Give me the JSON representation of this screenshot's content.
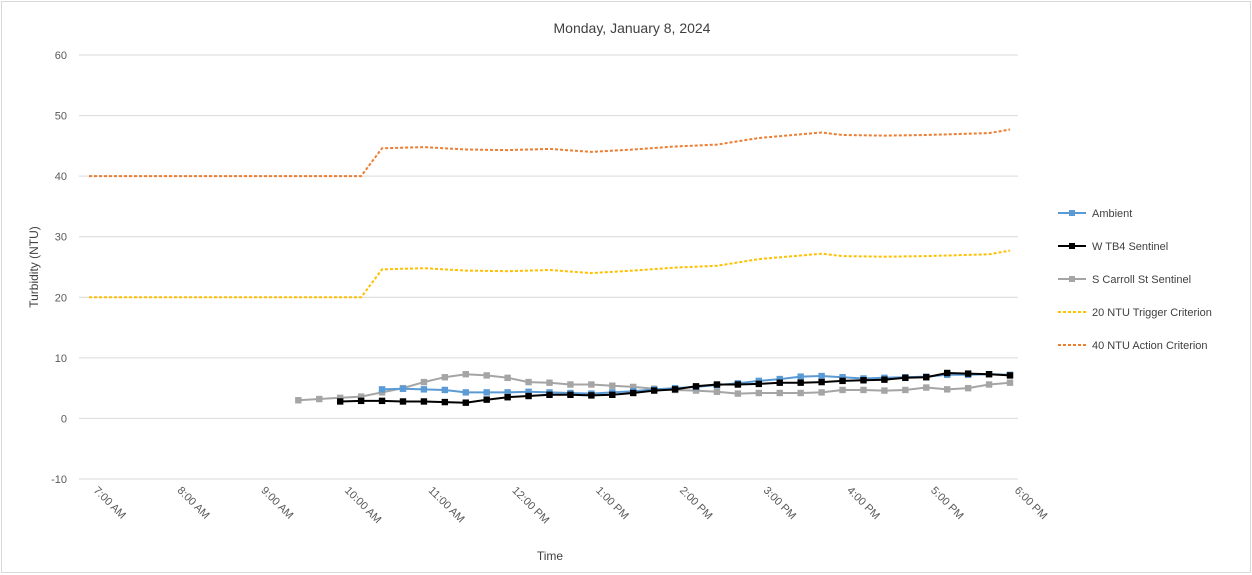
{
  "chart_data": {
    "type": "line",
    "title": "Monday, January 8, 2024",
    "xlabel": "Time",
    "ylabel": "Turbidity (NTU)",
    "ylim": [
      -10,
      60
    ],
    "yticks": [
      -10,
      0,
      10,
      20,
      30,
      40,
      50,
      60
    ],
    "x_range_hours": [
      7,
      18
    ],
    "x_tick_labels": [
      "7:00 AM",
      "8:00 AM",
      "9:00 AM",
      "10:00 AM",
      "11:00 AM",
      "12:00 PM",
      "1:00 PM",
      "2:00 PM",
      "3:00 PM",
      "4:00 PM",
      "5:00 PM",
      "6:00 PM"
    ],
    "grid": "horizontal",
    "legend_position": "right",
    "series": [
      {
        "name": "Ambient",
        "color": "#5b9bd5",
        "style": "solid",
        "marker": "square",
        "points": [
          [
            "10:30 AM",
            4.8
          ],
          [
            "10:45 AM",
            4.9
          ],
          [
            "11:00 AM",
            4.8
          ],
          [
            "11:15 AM",
            4.7
          ],
          [
            "11:30 AM",
            4.3
          ],
          [
            "11:45 AM",
            4.3
          ],
          [
            "12:00 PM",
            4.3
          ],
          [
            "12:15 PM",
            4.4
          ],
          [
            "12:30 PM",
            4.3
          ],
          [
            "12:45 PM",
            4.2
          ],
          [
            "1:00 PM",
            4.1
          ],
          [
            "1:15 PM",
            4.3
          ],
          [
            "1:30 PM",
            4.5
          ],
          [
            "1:45 PM",
            4.8
          ],
          [
            "2:00 PM",
            5.0
          ],
          [
            "2:15 PM",
            5.2
          ],
          [
            "2:30 PM",
            5.5
          ],
          [
            "2:45 PM",
            5.8
          ],
          [
            "3:00 PM",
            6.2
          ],
          [
            "3:15 PM",
            6.5
          ],
          [
            "3:30 PM",
            6.9
          ],
          [
            "3:45 PM",
            7.0
          ],
          [
            "4:00 PM",
            6.8
          ],
          [
            "4:15 PM",
            6.6
          ],
          [
            "4:30 PM",
            6.7
          ],
          [
            "4:45 PM",
            6.8
          ],
          [
            "5:00 PM",
            6.9
          ],
          [
            "5:15 PM",
            7.2
          ],
          [
            "5:30 PM",
            7.2
          ],
          [
            "5:45 PM",
            7.3
          ],
          [
            "6:00 PM",
            7.2
          ]
        ]
      },
      {
        "name": "W TB4 Sentinel",
        "color": "#000000",
        "style": "solid",
        "marker": "square",
        "points": [
          [
            "10:00 AM",
            2.8
          ],
          [
            "10:15 AM",
            2.9
          ],
          [
            "10:30 AM",
            2.9
          ],
          [
            "10:45 AM",
            2.8
          ],
          [
            "11:00 AM",
            2.8
          ],
          [
            "11:15 AM",
            2.7
          ],
          [
            "11:30 AM",
            2.6
          ],
          [
            "11:45 AM",
            3.1
          ],
          [
            "12:00 PM",
            3.5
          ],
          [
            "12:15 PM",
            3.7
          ],
          [
            "12:30 PM",
            3.9
          ],
          [
            "12:45 PM",
            3.9
          ],
          [
            "1:00 PM",
            3.8
          ],
          [
            "1:15 PM",
            3.9
          ],
          [
            "1:30 PM",
            4.2
          ],
          [
            "1:45 PM",
            4.6
          ],
          [
            "2:00 PM",
            4.8
          ],
          [
            "2:15 PM",
            5.3
          ],
          [
            "2:30 PM",
            5.6
          ],
          [
            "2:45 PM",
            5.6
          ],
          [
            "3:00 PM",
            5.7
          ],
          [
            "3:15 PM",
            5.9
          ],
          [
            "3:30 PM",
            5.9
          ],
          [
            "3:45 PM",
            6.0
          ],
          [
            "4:00 PM",
            6.2
          ],
          [
            "4:15 PM",
            6.3
          ],
          [
            "4:30 PM",
            6.4
          ],
          [
            "4:45 PM",
            6.7
          ],
          [
            "5:00 PM",
            6.8
          ],
          [
            "5:15 PM",
            7.5
          ],
          [
            "5:30 PM",
            7.4
          ],
          [
            "5:45 PM",
            7.3
          ],
          [
            "6:00 PM",
            7.1
          ]
        ]
      },
      {
        "name": "S Carroll St Sentinel",
        "color": "#a5a5a5",
        "style": "solid",
        "marker": "square",
        "points": [
          [
            "9:30 AM",
            3.0
          ],
          [
            "9:45 AM",
            3.2
          ],
          [
            "10:00 AM",
            3.4
          ],
          [
            "10:15 AM",
            3.6
          ],
          [
            "10:30 AM",
            4.3
          ],
          [
            "10:45 AM",
            5.0
          ],
          [
            "11:00 AM",
            6.0
          ],
          [
            "11:15 AM",
            6.8
          ],
          [
            "11:30 AM",
            7.3
          ],
          [
            "11:45 AM",
            7.1
          ],
          [
            "12:00 PM",
            6.7
          ],
          [
            "12:15 PM",
            6.0
          ],
          [
            "12:30 PM",
            5.9
          ],
          [
            "12:45 PM",
            5.6
          ],
          [
            "1:00 PM",
            5.6
          ],
          [
            "1:15 PM",
            5.4
          ],
          [
            "1:30 PM",
            5.2
          ],
          [
            "1:45 PM",
            4.9
          ],
          [
            "2:00 PM",
            4.7
          ],
          [
            "2:15 PM",
            4.6
          ],
          [
            "2:30 PM",
            4.4
          ],
          [
            "2:45 PM",
            4.1
          ],
          [
            "3:00 PM",
            4.2
          ],
          [
            "3:15 PM",
            4.2
          ],
          [
            "3:30 PM",
            4.2
          ],
          [
            "3:45 PM",
            4.3
          ],
          [
            "4:00 PM",
            4.7
          ],
          [
            "4:15 PM",
            4.7
          ],
          [
            "4:30 PM",
            4.6
          ],
          [
            "4:45 PM",
            4.7
          ],
          [
            "5:00 PM",
            5.1
          ],
          [
            "5:15 PM",
            4.8
          ],
          [
            "5:30 PM",
            5.0
          ],
          [
            "5:45 PM",
            5.6
          ],
          [
            "6:00 PM",
            5.9
          ]
        ]
      },
      {
        "name": "20 NTU Trigger Criterion",
        "color": "#ffc000",
        "style": "dashed",
        "marker": "none",
        "points": [
          [
            "7:00 AM",
            20.0
          ],
          [
            "10:15 AM",
            20.0
          ],
          [
            "10:30 AM",
            24.6
          ],
          [
            "11:00 AM",
            24.8
          ],
          [
            "11:30 AM",
            24.4
          ],
          [
            "12:00 PM",
            24.3
          ],
          [
            "12:30 PM",
            24.5
          ],
          [
            "1:00 PM",
            24.0
          ],
          [
            "1:30 PM",
            24.4
          ],
          [
            "2:00 PM",
            24.9
          ],
          [
            "2:30 PM",
            25.2
          ],
          [
            "3:00 PM",
            26.3
          ],
          [
            "3:30 PM",
            26.9
          ],
          [
            "3:45 PM",
            27.2
          ],
          [
            "4:00 PM",
            26.8
          ],
          [
            "4:30 PM",
            26.7
          ],
          [
            "5:00 PM",
            26.8
          ],
          [
            "5:30 PM",
            27.0
          ],
          [
            "5:45 PM",
            27.1
          ],
          [
            "6:00 PM",
            27.7
          ]
        ]
      },
      {
        "name": "40 NTU Action Criterion",
        "color": "#ed7d31",
        "style": "dashed",
        "marker": "none",
        "points": [
          [
            "7:00 AM",
            40.0
          ],
          [
            "10:15 AM",
            40.0
          ],
          [
            "10:30 AM",
            44.6
          ],
          [
            "11:00 AM",
            44.8
          ],
          [
            "11:30 AM",
            44.4
          ],
          [
            "12:00 PM",
            44.3
          ],
          [
            "12:30 PM",
            44.5
          ],
          [
            "1:00 PM",
            44.0
          ],
          [
            "1:30 PM",
            44.4
          ],
          [
            "2:00 PM",
            44.9
          ],
          [
            "2:30 PM",
            45.2
          ],
          [
            "3:00 PM",
            46.3
          ],
          [
            "3:30 PM",
            46.9
          ],
          [
            "3:45 PM",
            47.2
          ],
          [
            "4:00 PM",
            46.8
          ],
          [
            "4:30 PM",
            46.7
          ],
          [
            "5:00 PM",
            46.8
          ],
          [
            "5:30 PM",
            47.0
          ],
          [
            "5:45 PM",
            47.1
          ],
          [
            "6:00 PM",
            47.7
          ]
        ]
      }
    ]
  }
}
